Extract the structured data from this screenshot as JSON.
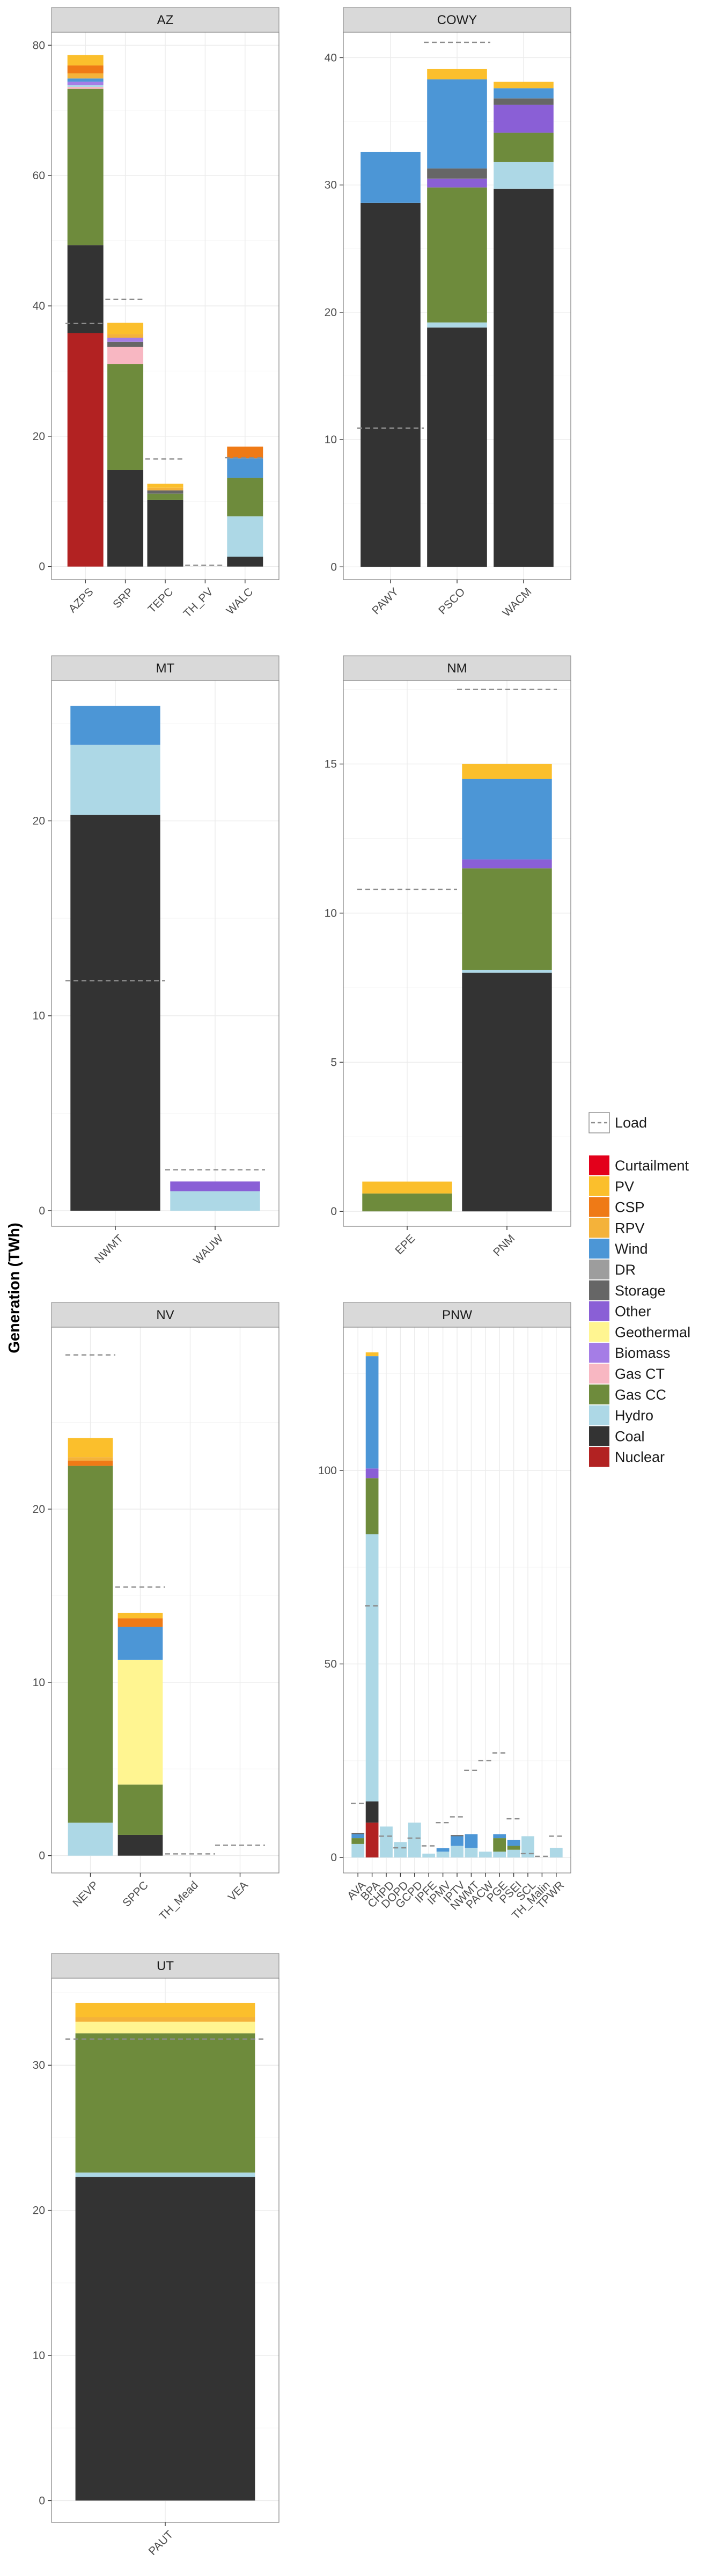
{
  "ylabel": "Generation (TWh)",
  "legend": {
    "load_label": "Load",
    "items": [
      {
        "name": "Curtailment",
        "color": "#e3001b"
      },
      {
        "name": "PV",
        "color": "#fbbf2c"
      },
      {
        "name": "CSP",
        "color": "#ef7a16"
      },
      {
        "name": "RPV",
        "color": "#f4b23a"
      },
      {
        "name": "Wind",
        "color": "#4c96d6"
      },
      {
        "name": "DR",
        "color": "#9d9d9d"
      },
      {
        "name": "Storage",
        "color": "#666666"
      },
      {
        "name": "Other",
        "color": "#8a5fd6"
      },
      {
        "name": "Geothermal",
        "color": "#fff591"
      },
      {
        "name": "Biomass",
        "color": "#a57de6"
      },
      {
        "name": "Gas CT",
        "color": "#f8b7c2"
      },
      {
        "name": "Gas CC",
        "color": "#6e8b3c"
      },
      {
        "name": "Hydro",
        "color": "#add8e6"
      },
      {
        "name": "Coal",
        "color": "#333333"
      },
      {
        "name": "Nuclear",
        "color": "#b22222"
      }
    ]
  },
  "chart_data": [
    {
      "type": "bar",
      "stacked": true,
      "title": "AZ",
      "ylim": [
        -2,
        82
      ],
      "yticks": [
        0,
        20,
        40,
        60,
        80
      ],
      "categories": [
        "AZPS",
        "SRP",
        "TEPC",
        "TH_PV",
        "WALC"
      ],
      "load": [
        37.3,
        41.0,
        16.5,
        0.2,
        16.7
      ],
      "bars": [
        [
          [
            "Nuclear",
            35.8
          ],
          [
            "Coal",
            13.5
          ],
          [
            "Gas CC",
            24.0
          ],
          [
            "Gas CT",
            0.3
          ],
          [
            "Hydro",
            0.3
          ],
          [
            "Biomass",
            0.5
          ],
          [
            "Wind",
            0.5
          ],
          [
            "RPV",
            0.8
          ],
          [
            "CSP",
            1.2
          ],
          [
            "PV",
            1.6
          ]
        ],
        [
          [
            "Coal",
            14.8
          ],
          [
            "Gas CC",
            16.3
          ],
          [
            "Gas CT",
            2.6
          ],
          [
            "Storage",
            0.8
          ],
          [
            "Biomass",
            0.6
          ],
          [
            "RPV",
            0.6
          ],
          [
            "PV",
            1.7
          ]
        ],
        [
          [
            "Coal",
            10.2
          ],
          [
            "Gas CC",
            1.0
          ],
          [
            "Storage",
            0.5
          ],
          [
            "RPV",
            0.4
          ],
          [
            "PV",
            0.6
          ]
        ],
        [],
        [
          [
            "Coal",
            1.5
          ],
          [
            "Hydro",
            6.2
          ],
          [
            "Gas CC",
            5.9
          ],
          [
            "Wind",
            3.0
          ],
          [
            "CSP",
            1.8
          ]
        ]
      ]
    },
    {
      "type": "bar",
      "stacked": true,
      "title": "COWY",
      "ylim": [
        -1,
        42
      ],
      "yticks": [
        0,
        10,
        20,
        30,
        40
      ],
      "categories": [
        "PAWY",
        "PSCO",
        "WACM"
      ],
      "load": [
        10.9,
        41.2,
        null
      ],
      "bars": [
        [
          [
            "Coal",
            28.6
          ],
          [
            "Wind",
            4.0
          ]
        ],
        [
          [
            "Coal",
            18.8
          ],
          [
            "Hydro",
            0.4
          ],
          [
            "Gas CC",
            10.6
          ],
          [
            "Other",
            0.7
          ],
          [
            "Storage",
            0.8
          ],
          [
            "Wind",
            7.0
          ],
          [
            "PV",
            0.8
          ]
        ],
        [
          [
            "Coal",
            29.7
          ],
          [
            "Hydro",
            2.1
          ],
          [
            "Gas CC",
            2.3
          ],
          [
            "Other",
            2.2
          ],
          [
            "Storage",
            0.5
          ],
          [
            "Wind",
            0.8
          ],
          [
            "PV",
            0.5
          ]
        ]
      ]
    },
    {
      "type": "bar",
      "stacked": true,
      "title": "MT",
      "ylim": [
        -0.8,
        27.2
      ],
      "yticks": [
        0,
        10,
        20
      ],
      "categories": [
        "NWMT",
        "WAUW"
      ],
      "load": [
        11.8,
        2.1
      ],
      "bars": [
        [
          [
            "Coal",
            20.3
          ],
          [
            "Hydro",
            3.6
          ],
          [
            "Wind",
            2.0
          ]
        ],
        [
          [
            "Hydro",
            1.0
          ],
          [
            "Other",
            0.5
          ]
        ]
      ]
    },
    {
      "type": "bar",
      "stacked": true,
      "title": "NM",
      "ylim": [
        -0.5,
        17.8
      ],
      "yticks": [
        0,
        5,
        10,
        15
      ],
      "categories": [
        "EPE",
        "PNM"
      ],
      "load": [
        10.8,
        17.5
      ],
      "bars": [
        [
          [
            "Gas CC",
            0.6
          ],
          [
            "PV",
            0.4
          ]
        ],
        [
          [
            "Coal",
            8.0
          ],
          [
            "Hydro",
            0.1
          ],
          [
            "Gas CC",
            3.4
          ],
          [
            "Other",
            0.3
          ],
          [
            "Wind",
            2.7
          ],
          [
            "PV",
            0.5
          ]
        ]
      ]
    },
    {
      "type": "bar",
      "stacked": true,
      "title": "NV",
      "ylim": [
        -1,
        30.5
      ],
      "yticks": [
        0,
        10,
        20
      ],
      "categories": [
        "NEVP",
        "SPPC",
        "TH_Mead",
        "VEA"
      ],
      "load": [
        28.9,
        15.5,
        0.1,
        0.6
      ],
      "bars": [
        [
          [
            "Hydro",
            1.9
          ],
          [
            "Gas CC",
            20.6
          ],
          [
            "CSP",
            0.3
          ],
          [
            "RPV",
            0.2
          ],
          [
            "PV",
            1.1
          ]
        ],
        [
          [
            "Coal",
            1.2
          ],
          [
            "Gas CC",
            2.9
          ],
          [
            "Geothermal",
            7.2
          ],
          [
            "Wind",
            1.9
          ],
          [
            "CSP",
            0.5
          ],
          [
            "PV",
            0.3
          ]
        ],
        [],
        []
      ]
    },
    {
      "type": "bar",
      "stacked": true,
      "title": "PNW",
      "ylim": [
        -4,
        137
      ],
      "yticks": [
        0,
        50,
        100
      ],
      "categories": [
        "AVA",
        "BPA",
        "CHPD",
        "DOPD",
        "GCPD",
        "IPFE",
        "IPMV",
        "IPTV",
        "NWMT",
        "PACW",
        "PGE",
        "PSEI",
        "SCL",
        "TH_Malin",
        "TPWR"
      ],
      "load": [
        14.0,
        65.0,
        5.5,
        2.5,
        5.0,
        3.0,
        9.0,
        10.5,
        22.5,
        25.0,
        27.0,
        10.0,
        1.0,
        0.3,
        5.5
      ],
      "bars": [
        [
          [
            "Hydro",
            3.5
          ],
          [
            "Gas CC",
            1.5
          ],
          [
            "Wind",
            1.0
          ],
          [
            "Storage",
            0.3
          ]
        ],
        [
          [
            "Nuclear",
            9.0
          ],
          [
            "Coal",
            5.5
          ],
          [
            "Hydro",
            69.0
          ],
          [
            "Gas CC",
            14.5
          ],
          [
            "Other",
            2.5
          ],
          [
            "Wind",
            29.0
          ],
          [
            "PV",
            1.0
          ]
        ],
        [
          [
            "Hydro",
            8.0
          ]
        ],
        [
          [
            "Hydro",
            4.0
          ]
        ],
        [
          [
            "Hydro",
            9.0
          ]
        ],
        [
          [
            "Hydro",
            1.0
          ]
        ],
        [
          [
            "Hydro",
            1.5
          ],
          [
            "Wind",
            0.9
          ]
        ],
        [
          [
            "Hydro",
            3.0
          ],
          [
            "Wind",
            2.5
          ],
          [
            "Storage",
            0.3
          ]
        ],
        [
          [
            "Hydro",
            2.5
          ],
          [
            "Wind",
            3.5
          ]
        ],
        [
          [
            "Hydro",
            1.5
          ]
        ],
        [
          [
            "Hydro",
            1.5
          ],
          [
            "Gas CC",
            3.5
          ],
          [
            "Wind",
            1.0
          ]
        ],
        [
          [
            "Hydro",
            2.0
          ],
          [
            "Gas CC",
            1.0
          ],
          [
            "Wind",
            1.5
          ]
        ],
        [
          [
            "Hydro",
            5.5
          ]
        ],
        [],
        [
          [
            "Hydro",
            2.5
          ]
        ]
      ]
    },
    {
      "type": "bar",
      "stacked": true,
      "title": "UT",
      "ylim": [
        -1.5,
        36.0
      ],
      "yticks": [
        0,
        10,
        20,
        30
      ],
      "categories": [
        "PAUT"
      ],
      "load": [
        31.8
      ],
      "bars": [
        [
          [
            "Coal",
            22.3
          ],
          [
            "Hydro",
            0.3
          ],
          [
            "Gas CC",
            9.6
          ],
          [
            "Geothermal",
            0.8
          ],
          [
            "RPV",
            0.3
          ],
          [
            "PV",
            1.0
          ]
        ]
      ]
    }
  ]
}
